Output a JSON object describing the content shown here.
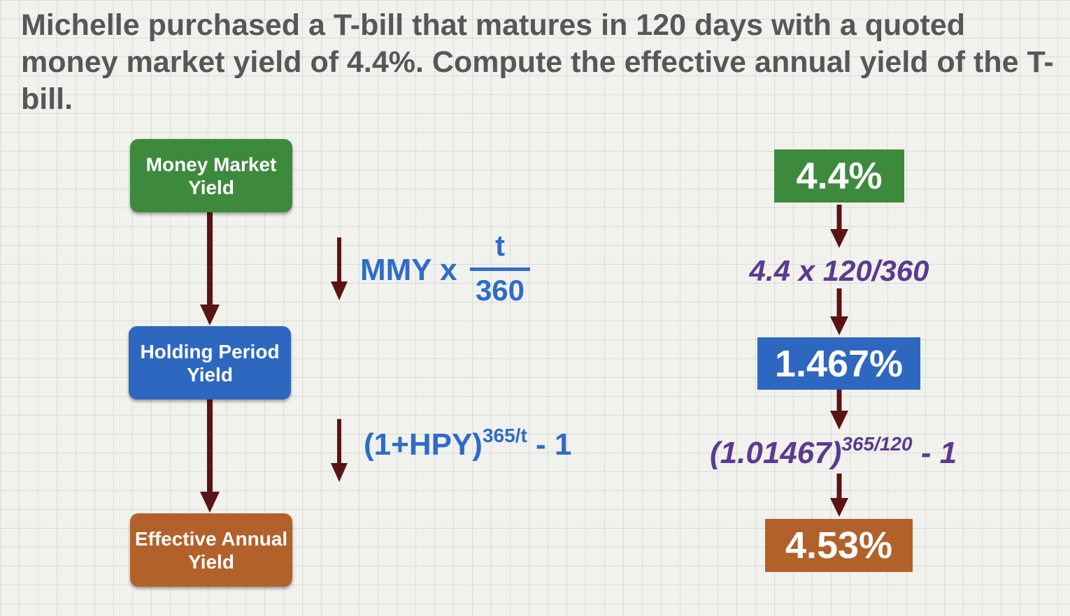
{
  "question": "Michelle purchased a T-bill that matures in 120 days with a quoted money market yield of 4.4%. Compute the effective annual yield of the T-bill.",
  "left_flow": {
    "mmy_label": "Money Market Yield",
    "hpy_label": "Holding Period Yield",
    "eay_label": "Effective Annual Yield"
  },
  "formulas": {
    "mmy_to_hpy": {
      "prefix": "MMY x",
      "numerator": "t",
      "denominator": "360"
    },
    "hpy_to_eay": {
      "base": "(1+HPY)",
      "exponent": "365/t",
      "suffix": "- 1"
    }
  },
  "right_flow": {
    "mmy_value": "4.4%",
    "step1": "4.4 x 120/360",
    "hpy_value": "1.467%",
    "step2": {
      "base": "(1.01467)",
      "exponent": "365/120",
      "suffix": "- 1"
    },
    "eay_value": "4.53%"
  },
  "colors": {
    "green": "#3e8a3c",
    "blue": "#2e67c0",
    "orange": "#b2612a",
    "arrow": "#5a1414",
    "formula_blue": "#2e6dc6",
    "formula_purple": "#5c3a8f",
    "text_gray": "#555759"
  }
}
